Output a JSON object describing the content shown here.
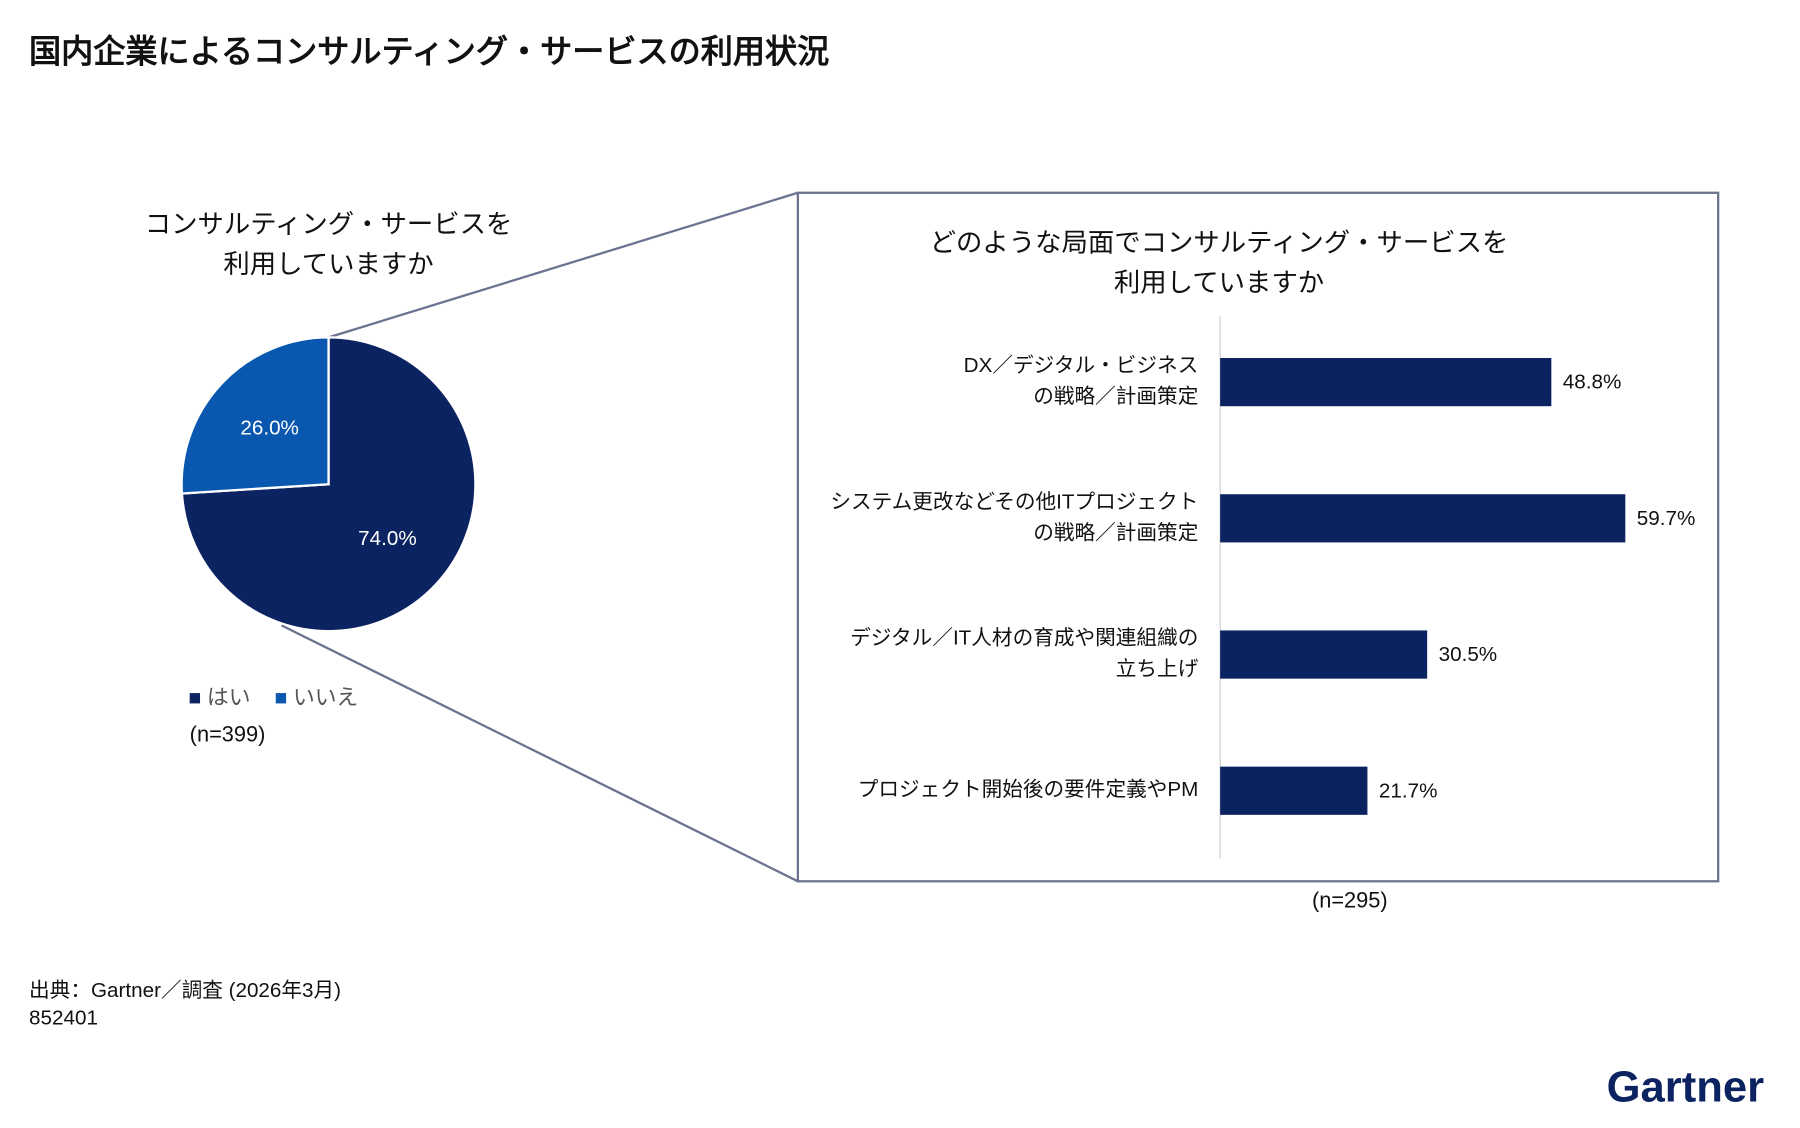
{
  "title": "国内企業によるコンサルティング・サービスの利用状況",
  "chart_data": [
    {
      "type": "pie",
      "title": [
        "コンサルティング・サービスを",
        "利用していますか"
      ],
      "categories": [
        "はい",
        "いいえ"
      ],
      "values": [
        74.0,
        26.0
      ],
      "value_labels": [
        "74.0%",
        "26.0%"
      ],
      "colors": [
        "#0b2361",
        "#0a57b0"
      ],
      "note": "(n=399)"
    },
    {
      "type": "hbar",
      "title": [
        "どのような局面でコンサルティング・サービスを",
        "利用していますか"
      ],
      "categories": [
        [
          "DX／デジタル・ビジネス",
          "の戦略／計画策定"
        ],
        [
          "システム更改などその他ITプロジェクト",
          "の戦略／計画策定"
        ],
        [
          "デジタル／IT人材の育成や関連組織の",
          "立ち上げ"
        ],
        [
          "プロジェクト開始後の要件定義やPM"
        ]
      ],
      "values": [
        48.8,
        59.7,
        30.5,
        21.7
      ],
      "value_labels": [
        "48.8%",
        "59.7%",
        "30.5%",
        "21.7%"
      ],
      "color": "#0b2361",
      "xlim": [
        0,
        70
      ],
      "note": "(n=295)"
    }
  ],
  "source": "出典：Gartner／調査 (2026年3月)",
  "id": "852401",
  "logo": "Gartner"
}
